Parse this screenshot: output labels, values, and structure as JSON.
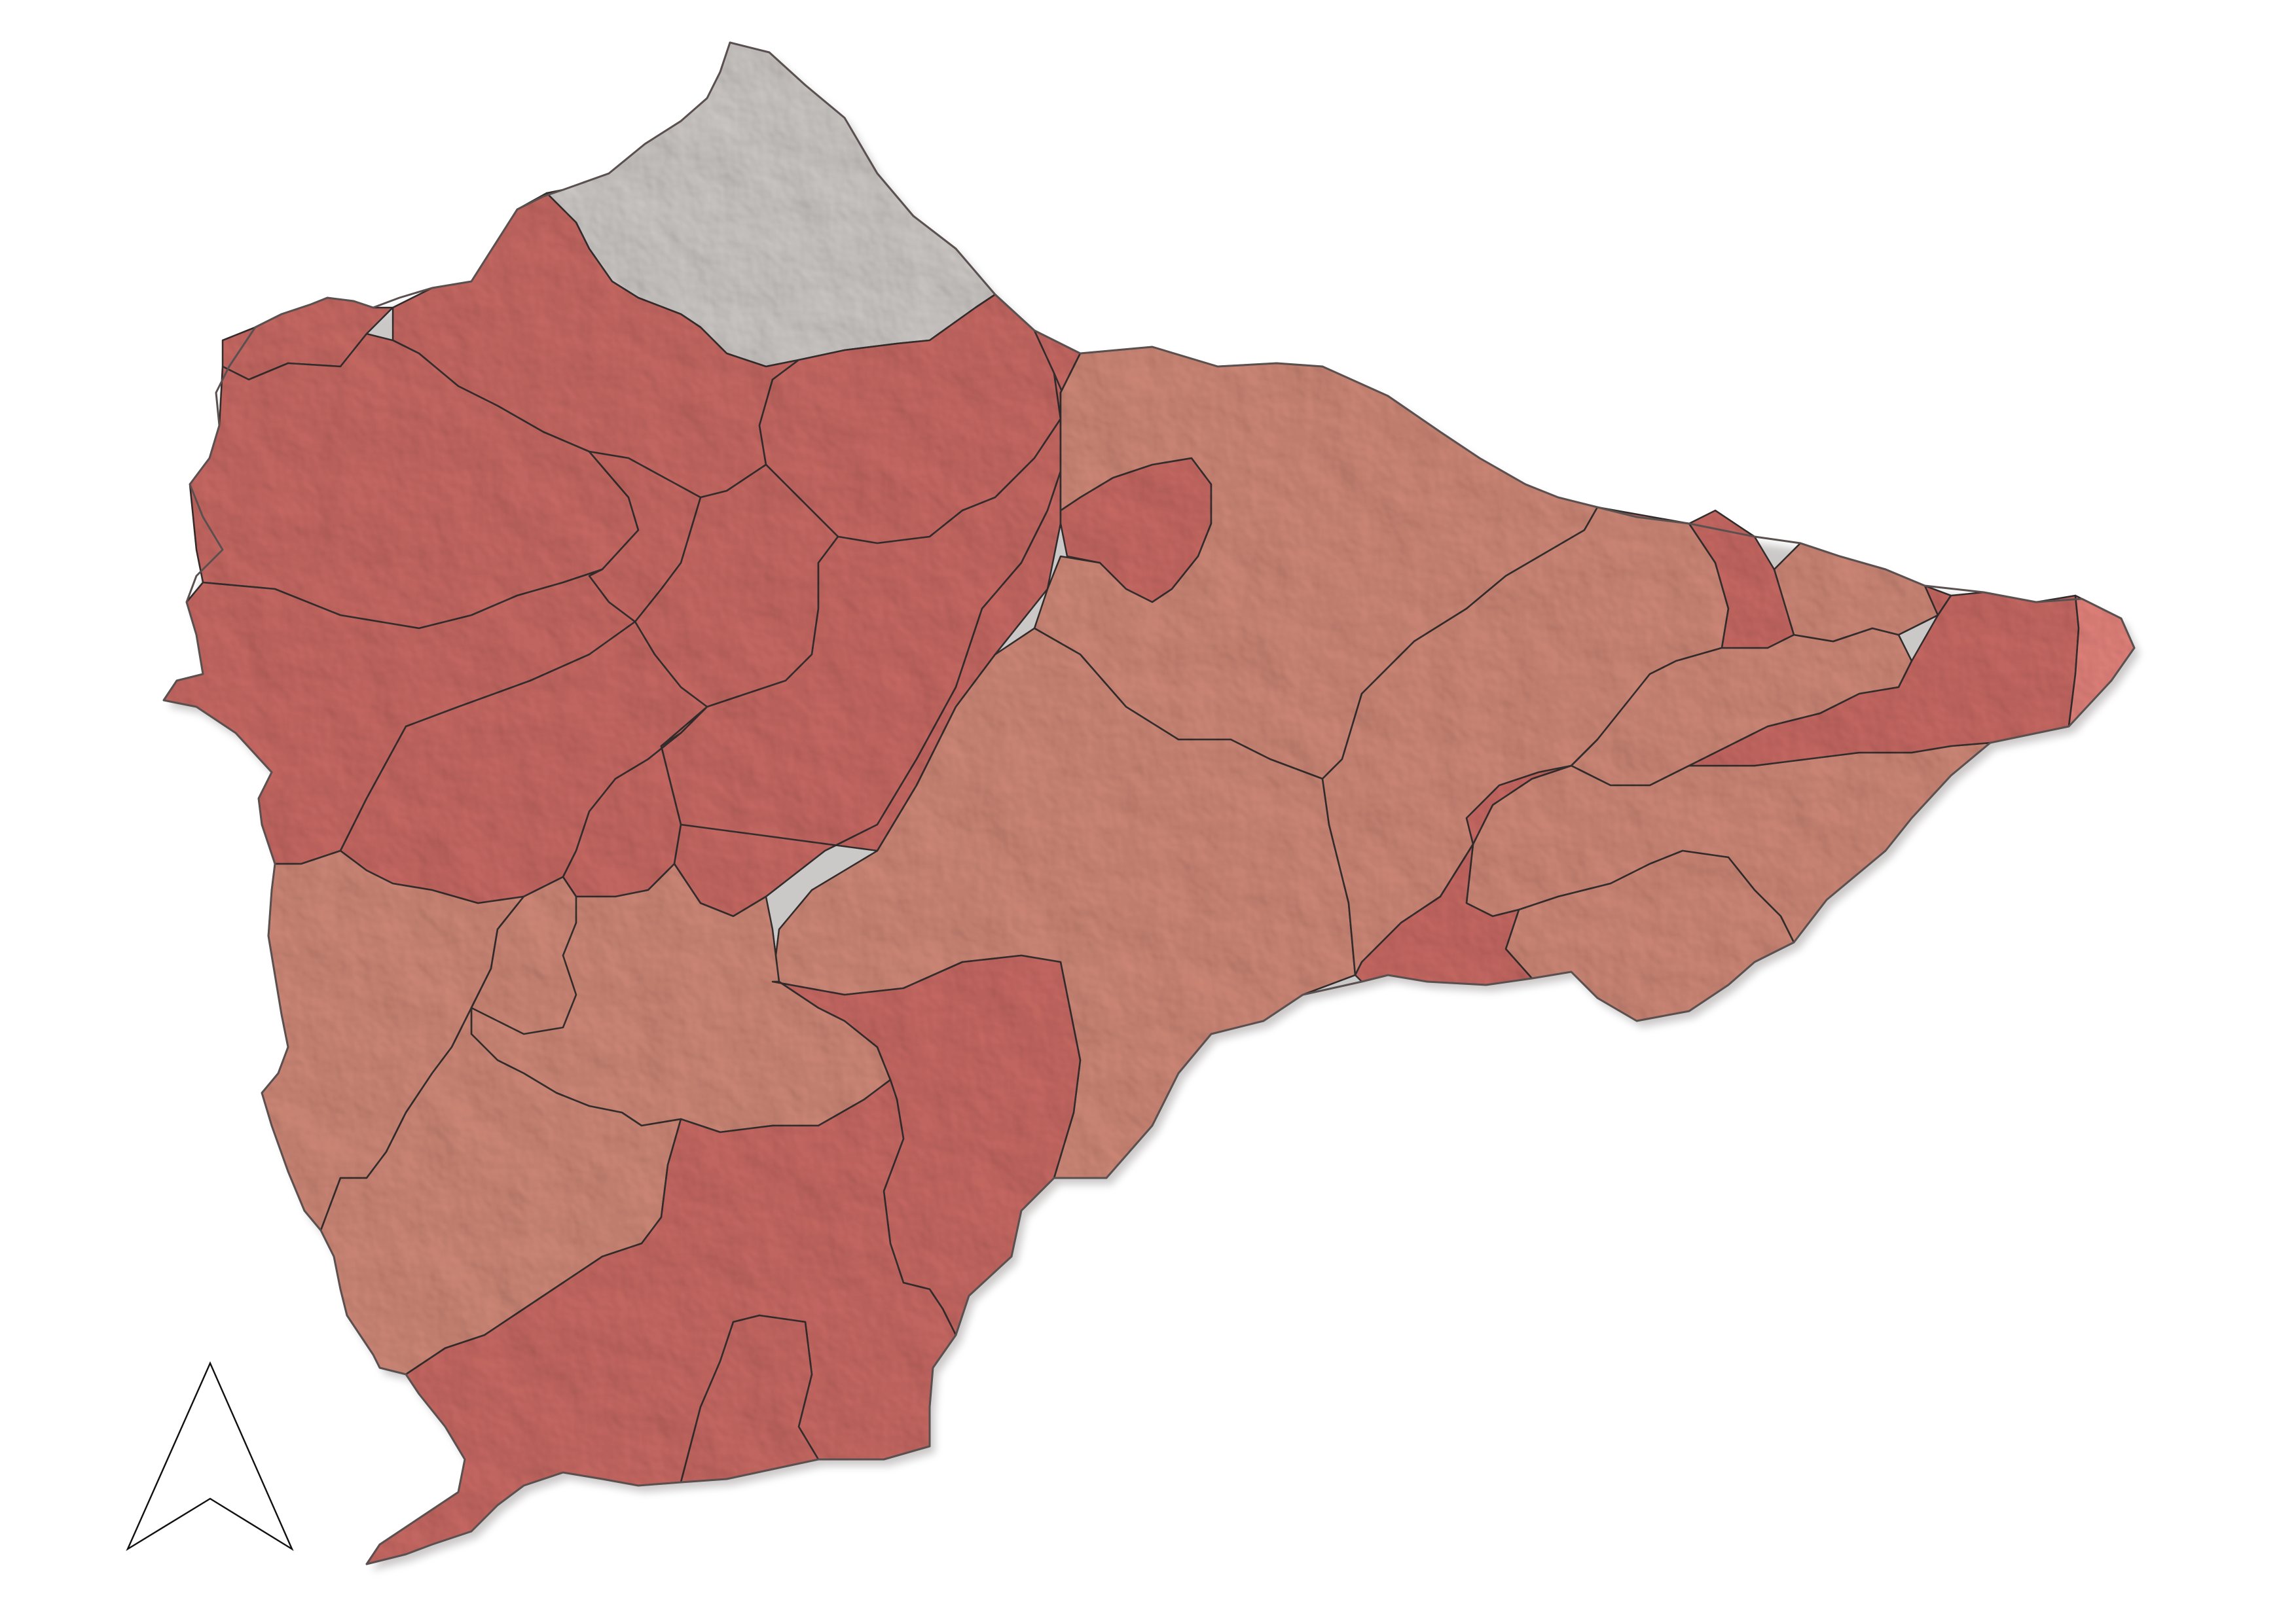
{
  "map": {
    "type": "choropleth",
    "shaded_relief": true,
    "legend": "none",
    "colors": {
      "no_data": "#d9d5d3",
      "dark_red": "#d5706a",
      "mid_salmon": "#dc917f",
      "light_red": "#f28b84",
      "border": "#3a3434"
    },
    "regions": [
      {
        "name": "north-gray",
        "class": "no_data"
      },
      {
        "name": "nw-a",
        "class": "dark_red"
      },
      {
        "name": "nw-b",
        "class": "dark_red"
      },
      {
        "name": "nw-c",
        "class": "dark_red"
      },
      {
        "name": "nw-d",
        "class": "dark_red"
      },
      {
        "name": "nw-e",
        "class": "dark_red"
      },
      {
        "name": "nw-f",
        "class": "dark_red"
      },
      {
        "name": "nw-g",
        "class": "dark_red"
      },
      {
        "name": "nw-h",
        "class": "dark_red"
      },
      {
        "name": "nw-i",
        "class": "dark_red"
      },
      {
        "name": "nw-j",
        "class": "dark_red"
      },
      {
        "name": "nw-k",
        "class": "dark_red"
      },
      {
        "name": "nw-l",
        "class": "dark_red"
      },
      {
        "name": "n-small",
        "class": "dark_red"
      },
      {
        "name": "c-north",
        "class": "mid_salmon"
      },
      {
        "name": "c-big",
        "class": "mid_salmon"
      },
      {
        "name": "c-east",
        "class": "mid_salmon"
      },
      {
        "name": "e-a",
        "class": "mid_salmon"
      },
      {
        "name": "e-b",
        "class": "mid_salmon"
      },
      {
        "name": "e-c",
        "class": "mid_salmon"
      },
      {
        "name": "e-red-top",
        "class": "dark_red"
      },
      {
        "name": "e-red-strip",
        "class": "dark_red"
      },
      {
        "name": "e-red-diag",
        "class": "dark_red"
      },
      {
        "name": "e-small",
        "class": "mid_salmon"
      },
      {
        "name": "e-tip",
        "class": "light_red"
      },
      {
        "name": "sw-a",
        "class": "mid_salmon"
      },
      {
        "name": "sw-b",
        "class": "mid_salmon"
      },
      {
        "name": "sw-c",
        "class": "mid_salmon"
      },
      {
        "name": "sw-d",
        "class": "mid_salmon"
      },
      {
        "name": "s-red-a",
        "class": "dark_red"
      },
      {
        "name": "s-red-b",
        "class": "dark_red"
      },
      {
        "name": "s-red-c",
        "class": "dark_red"
      }
    ],
    "north_arrow": {
      "icon": "north-arrow-icon"
    }
  }
}
